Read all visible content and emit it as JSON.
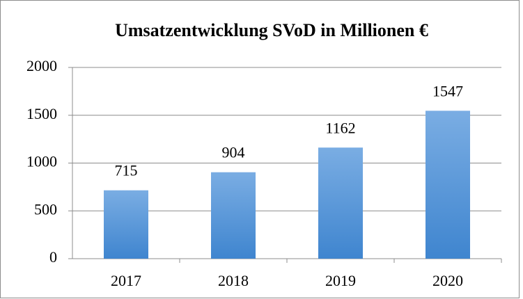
{
  "chart_data": {
    "type": "bar",
    "title": "Umsatzentwicklung SVoD in Millionen €",
    "categories": [
      "2017",
      "2018",
      "2019",
      "2020"
    ],
    "values": [
      715,
      904,
      1162,
      1547
    ],
    "color": "#4a90d9",
    "ylim": [
      0,
      2000
    ],
    "yticks": [
      0,
      500,
      1000,
      1500,
      2000
    ],
    "grid": true
  }
}
